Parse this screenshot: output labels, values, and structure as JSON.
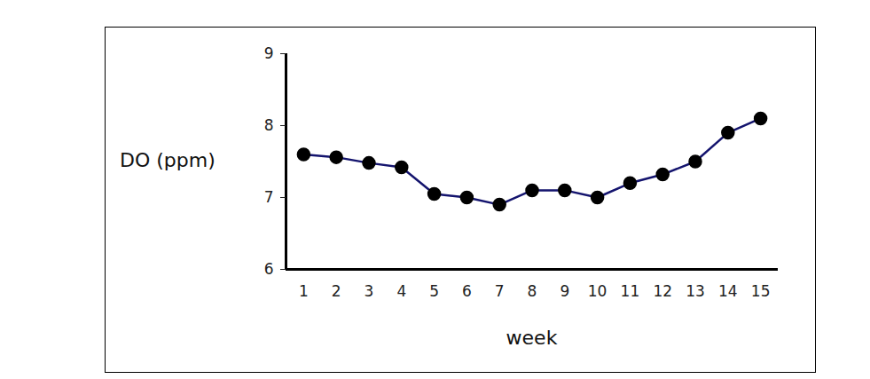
{
  "chart_data": {
    "type": "line",
    "x_label": "week",
    "y_label": "DO (ppm)",
    "x": [
      1,
      2,
      3,
      4,
      5,
      6,
      7,
      8,
      9,
      10,
      11,
      12,
      13,
      14,
      15
    ],
    "series": [
      {
        "name": "DO",
        "color": "#14146e",
        "marker": "circle",
        "line_style": "solid",
        "values": [
          7.6,
          7.56,
          7.48,
          7.42,
          7.05,
          7.0,
          6.9,
          7.1,
          7.1,
          7.0,
          7.2,
          7.32,
          7.5,
          7.9,
          8.1
        ]
      }
    ],
    "xlim": [
      0.46,
      15.54
    ],
    "xticks": [
      1,
      2,
      3,
      4,
      5,
      6,
      7,
      8,
      9,
      10,
      11,
      12,
      13,
      14,
      15
    ],
    "ylim": [
      6,
      9
    ],
    "yticks": [
      6,
      7,
      8,
      9
    ],
    "grid": false
  }
}
